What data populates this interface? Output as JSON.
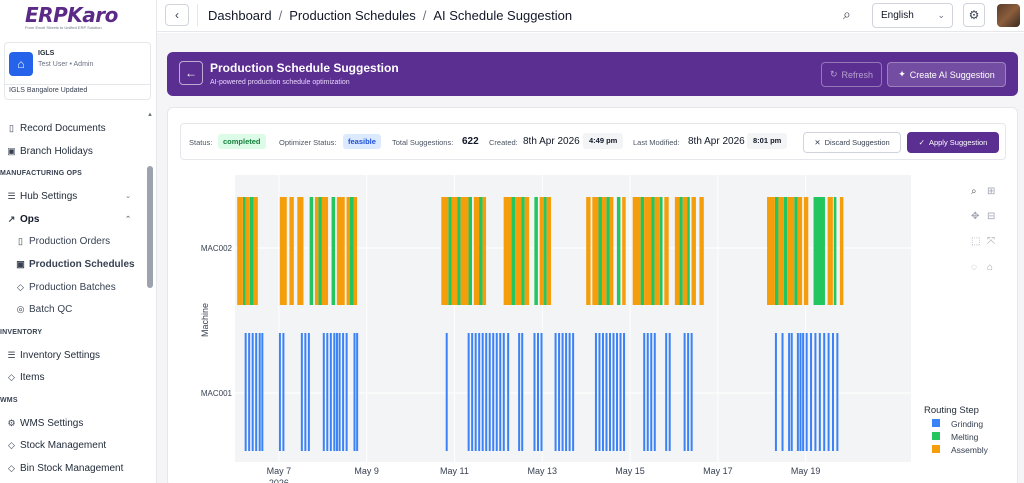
{
  "logo": {
    "name": "ERPKaro",
    "tagline": "From Excel Sheets to Unified ERP Solution"
  },
  "org": {
    "name": "IGLS",
    "user": "Test User • Admin",
    "branch": "IGLS Bangalore Updated"
  },
  "sidebar": {
    "items": [
      {
        "label": "Record Documents",
        "icon": "document-icon"
      },
      {
        "label": "Branch Holidays",
        "icon": "calendar-icon"
      }
    ],
    "section_mfg": "MANUFACTURING OPS",
    "hub_settings": "Hub Settings",
    "ops": "Ops",
    "ops_children": [
      "Production Orders",
      "Production Schedules",
      "Production Batches",
      "Batch QC"
    ],
    "section_inventory": "INVENTORY",
    "inventory_items": [
      "Inventory Settings",
      "Items"
    ],
    "section_wms": "WMS",
    "wms_items": [
      "WMS Settings",
      "Stock Management",
      "Bin Stock Management"
    ]
  },
  "breadcrumb": [
    "Dashboard",
    "Production Schedules",
    "AI Schedule Suggestion"
  ],
  "language": "English",
  "banner": {
    "title": "Production Schedule Suggestion",
    "subtitle": "AI-powered production schedule optimization",
    "refresh_label": "Refresh",
    "create_label": "Create AI Suggestion"
  },
  "status": {
    "status_label": "Status:",
    "status_value": "completed",
    "optimizer_label": "Optimizer Status:",
    "optimizer_value": "feasible",
    "total_label": "Total Suggestions:",
    "total_value": "622",
    "created_label": "Created:",
    "created_date": "8th Apr 2026",
    "created_time": "4:49 pm",
    "modified_label": "Last Modified:",
    "modified_date": "8th Apr 2026",
    "modified_time": "8:01 pm",
    "discard_label": "Discard Suggestion",
    "apply_label": "Apply Suggestion"
  },
  "colors": {
    "grinding": "#3b82f6",
    "melting": "#22c55e",
    "assembly": "#f59e0b",
    "brand": "#5b2e91"
  },
  "chart_data": {
    "type": "gantt",
    "ylabel": "Machine",
    "categories": [
      "MAC002",
      "MAC001"
    ],
    "x_ticks": [
      "May 7",
      "May 9",
      "May 11",
      "May 13",
      "May 15",
      "May 17",
      "May 19"
    ],
    "x_year": "2026",
    "xlim": [
      "May 6 0:00",
      "May 21 10:00"
    ],
    "legend_title": "Routing Step",
    "series": [
      {
        "name": "Grinding",
        "color": "#3b82f6",
        "machine": "MAC001",
        "times": [
          6.22,
          6.3,
          6.38,
          6.46,
          6.54,
          6.6,
          7.0,
          7.08,
          7.5,
          7.58,
          7.66,
          8.0,
          8.08,
          8.16,
          8.24,
          8.3,
          8.36,
          8.44,
          8.52,
          8.7,
          8.76,
          10.8,
          11.3,
          11.38,
          11.46,
          11.54,
          11.62,
          11.7,
          11.78,
          11.86,
          11.94,
          12.02,
          12.1,
          12.2,
          12.45,
          12.52,
          12.8,
          12.88,
          12.96,
          13.28,
          13.36,
          13.44,
          13.52,
          13.6,
          13.68,
          14.2,
          14.28,
          14.36,
          14.44,
          14.52,
          14.6,
          14.68,
          14.76,
          14.84,
          15.3,
          15.38,
          15.46,
          15.54,
          15.8,
          15.88,
          16.22,
          16.3,
          16.38,
          18.3,
          18.45,
          18.6,
          18.66,
          18.8,
          18.86,
          18.92,
          19.0,
          19.1,
          19.2,
          19.3,
          19.4,
          19.5,
          19.6,
          19.7
        ]
      },
      {
        "name": "Melting",
        "color": "#22c55e",
        "machine": "MAC002",
        "blocks": [
          [
            6.18,
            6.24
          ],
          [
            6.34,
            6.42
          ],
          [
            7.7,
            7.78
          ],
          [
            7.9,
            7.98
          ],
          [
            8.2,
            8.28
          ],
          [
            8.62,
            8.7
          ],
          [
            10.86,
            10.94
          ],
          [
            11.06,
            11.14
          ],
          [
            11.32,
            11.4
          ],
          [
            11.56,
            11.64
          ],
          [
            12.3,
            12.38
          ],
          [
            12.52,
            12.6
          ],
          [
            12.82,
            12.9
          ],
          [
            13.04,
            13.1
          ],
          [
            14.28,
            14.36
          ],
          [
            14.46,
            14.54
          ],
          [
            14.7,
            14.78
          ],
          [
            15.24,
            15.32
          ],
          [
            15.48,
            15.56
          ],
          [
            15.68,
            15.74
          ],
          [
            16.12,
            16.2
          ],
          [
            16.3,
            16.36
          ],
          [
            18.3,
            18.38
          ],
          [
            18.5,
            18.58
          ],
          [
            18.74,
            18.82
          ],
          [
            19.18,
            19.44
          ],
          [
            19.64,
            19.7
          ]
        ]
      },
      {
        "name": "Assembly",
        "color": "#f59e0b",
        "machine": "MAC002",
        "blocks": [
          [
            6.05,
            6.18
          ],
          [
            6.24,
            6.34
          ],
          [
            6.42,
            6.52
          ],
          [
            7.02,
            7.18
          ],
          [
            7.24,
            7.34
          ],
          [
            7.42,
            7.56
          ],
          [
            7.82,
            7.9
          ],
          [
            7.98,
            8.12
          ],
          [
            8.32,
            8.5
          ],
          [
            8.54,
            8.62
          ],
          [
            8.7,
            8.78
          ],
          [
            10.7,
            10.86
          ],
          [
            10.94,
            11.06
          ],
          [
            11.14,
            11.32
          ],
          [
            11.44,
            11.56
          ],
          [
            11.64,
            11.72
          ],
          [
            12.12,
            12.3
          ],
          [
            12.38,
            12.52
          ],
          [
            12.6,
            12.7
          ],
          [
            12.94,
            13.04
          ],
          [
            13.1,
            13.2
          ],
          [
            14.0,
            14.1
          ],
          [
            14.14,
            14.28
          ],
          [
            14.36,
            14.46
          ],
          [
            14.54,
            14.62
          ],
          [
            14.82,
            14.9
          ],
          [
            15.06,
            15.24
          ],
          [
            15.32,
            15.48
          ],
          [
            15.56,
            15.68
          ],
          [
            15.78,
            15.88
          ],
          [
            16.02,
            16.12
          ],
          [
            16.2,
            16.3
          ],
          [
            16.4,
            16.5
          ],
          [
            16.58,
            16.68
          ],
          [
            18.12,
            18.3
          ],
          [
            18.38,
            18.5
          ],
          [
            18.58,
            18.74
          ],
          [
            18.82,
            18.92
          ],
          [
            18.96,
            19.06
          ],
          [
            19.5,
            19.62
          ],
          [
            19.78,
            19.86
          ]
        ]
      }
    ]
  }
}
